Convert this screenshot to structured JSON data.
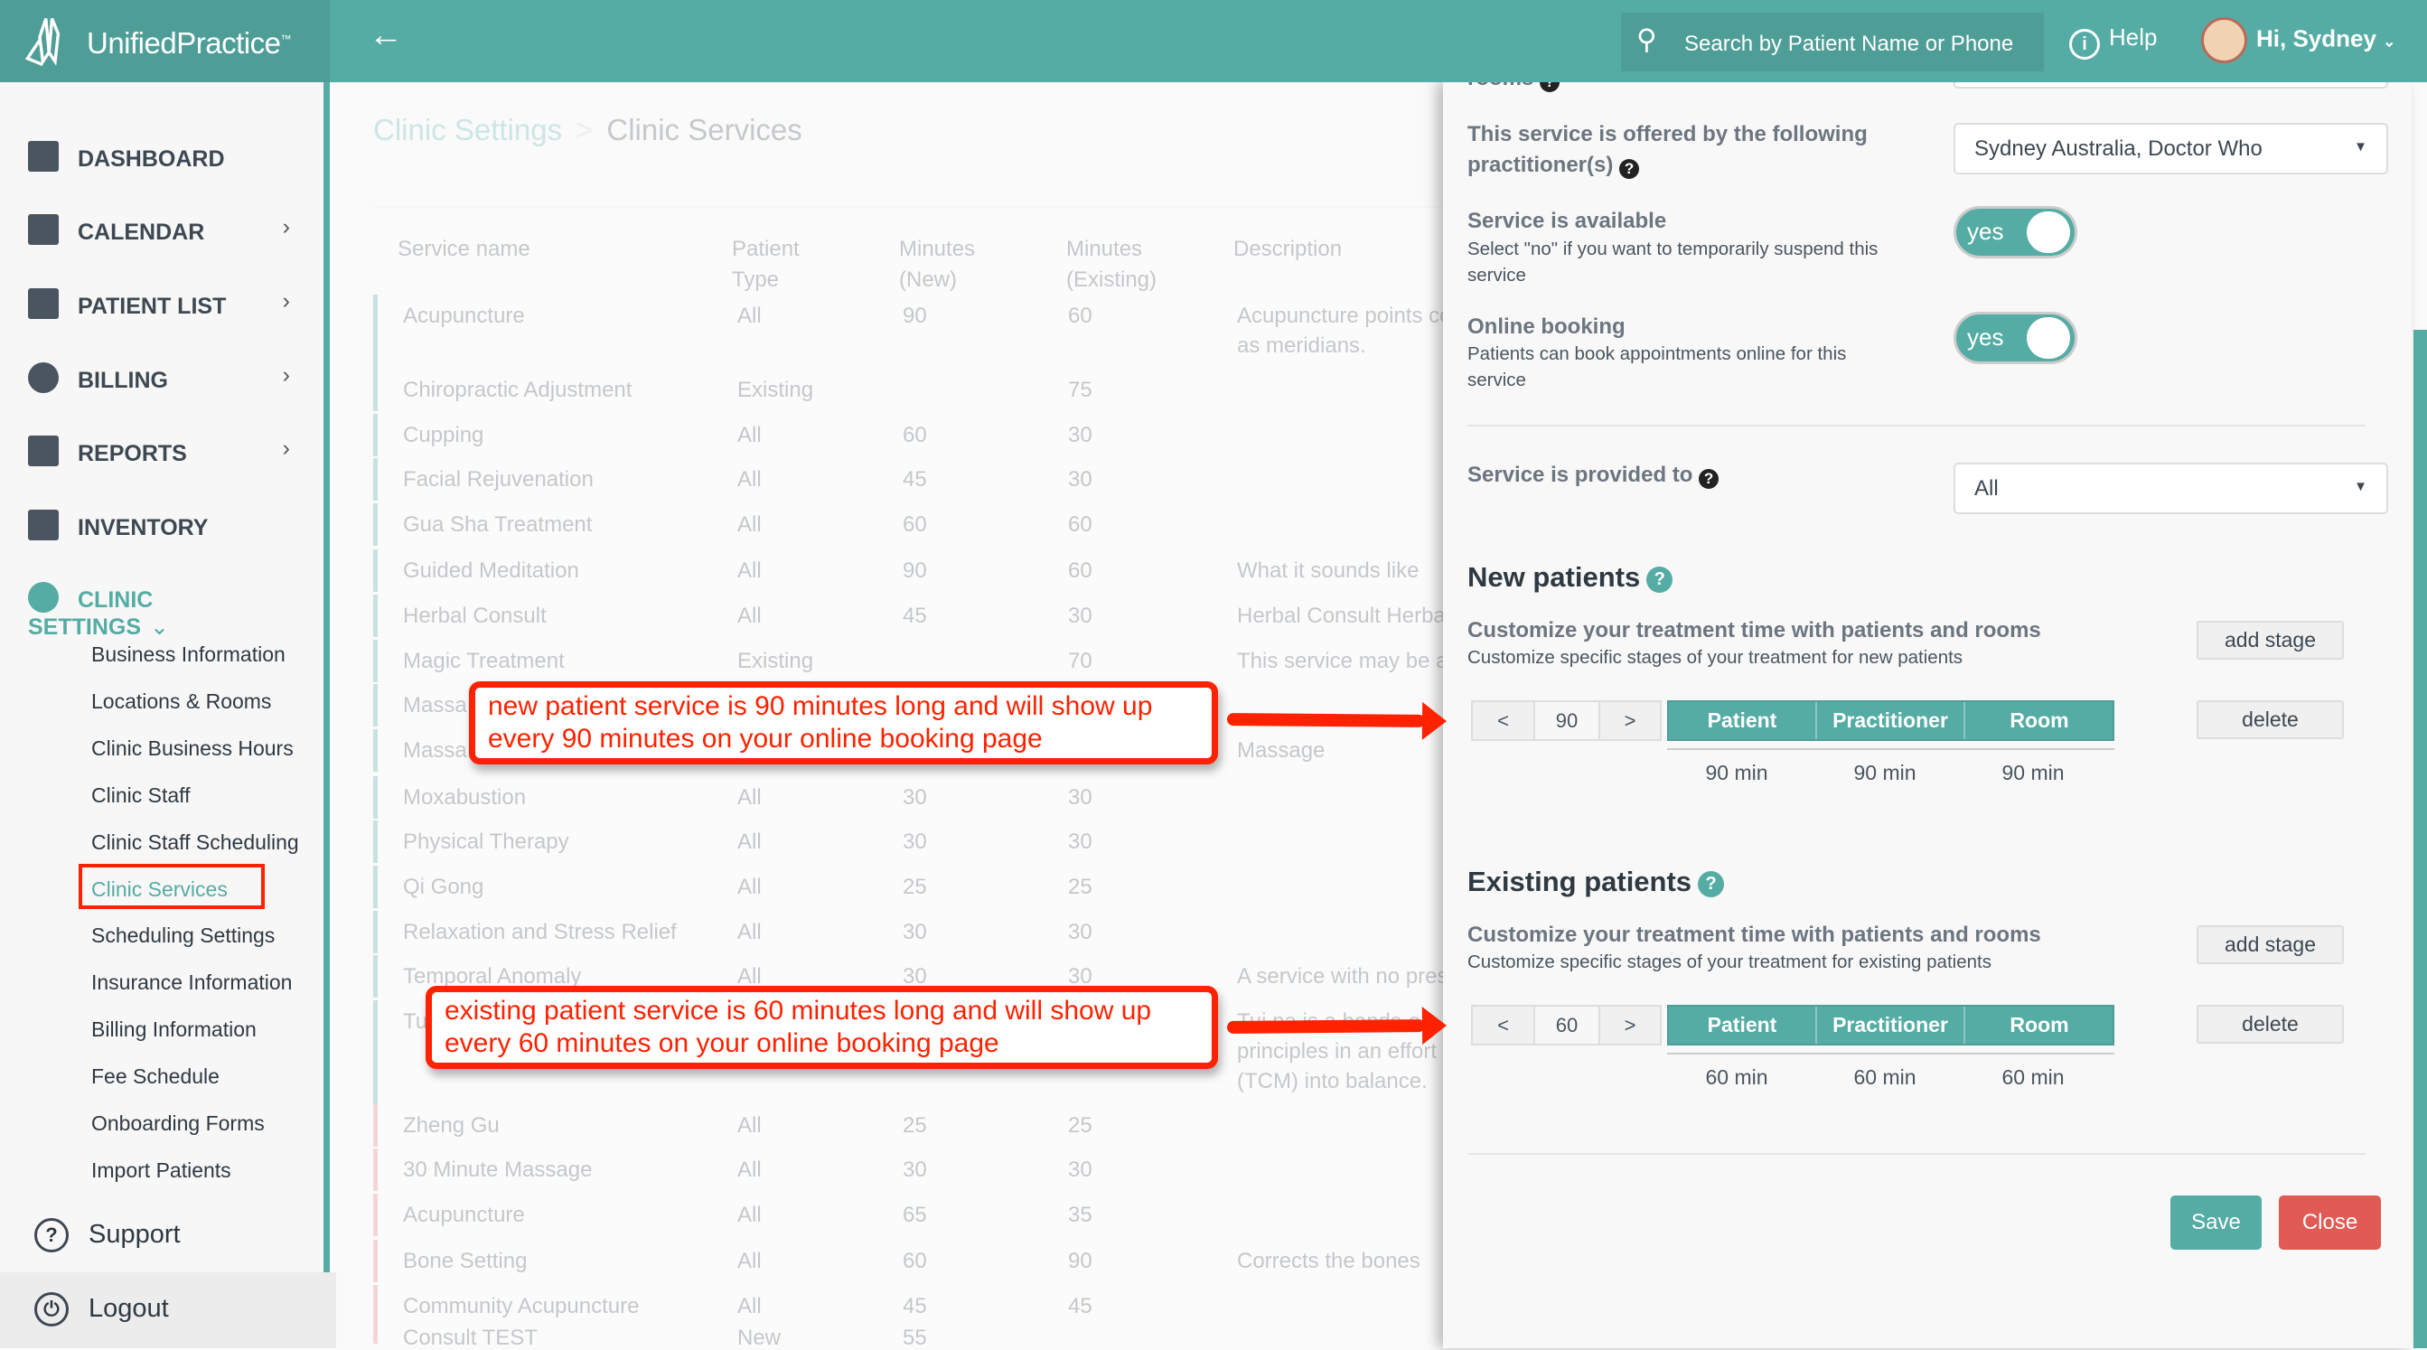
{
  "app": {
    "name_bold": "Unified",
    "name_light": "Practice",
    "trademark": "™"
  },
  "header": {
    "search_placeholder": "Search by Patient Name or Phone",
    "help": "Help",
    "user_greeting": "Hi, Sydney",
    "back_icon": "arrow-left-icon"
  },
  "sidebar": {
    "items": [
      {
        "label": "DASHBOARD",
        "icon": "dashboard-icon",
        "chevron": false
      },
      {
        "label": "CALENDAR",
        "icon": "calendar-icon",
        "chevron": true
      },
      {
        "label": "PATIENT LIST",
        "icon": "user-icon",
        "chevron": true
      },
      {
        "label": "BILLING",
        "icon": "dollar-icon",
        "chevron": true
      },
      {
        "label": "REPORTS",
        "icon": "clipboard-icon",
        "chevron": true
      },
      {
        "label": "INVENTORY",
        "icon": "inventory-icon",
        "chevron": false
      },
      {
        "label": "CLINIC SETTINGS",
        "icon": "gear-icon",
        "chevron": true,
        "active": true
      }
    ],
    "subitems": [
      "Business Information",
      "Locations & Rooms",
      "Clinic Business Hours",
      "Clinic Staff",
      "Clinic Staff Scheduling",
      "Clinic Services",
      "Scheduling Settings",
      "Insurance Information",
      "Billing Information",
      "Fee Schedule",
      "Onboarding Forms",
      "Import Patients"
    ],
    "active_subitem": "Clinic Services",
    "support": "Support",
    "logout": "Logout"
  },
  "breadcrumb": {
    "parent": "Clinic Settings",
    "separator": ">",
    "current": "Clinic Services"
  },
  "table": {
    "headers": [
      "Service name",
      "Patient Type",
      "Minutes (New)",
      "Minutes (Existing)",
      "Description"
    ],
    "rows": [
      {
        "name": "Acupuncture",
        "type": "All",
        "new": "90",
        "existing": "60",
        "desc": "Acupuncture points co\nas meridians.",
        "active": true
      },
      {
        "name": "Chiropractic Adjustment",
        "type": "Existing",
        "new": "",
        "existing": "75",
        "desc": "",
        "active": true
      },
      {
        "name": "Cupping",
        "type": "All",
        "new": "60",
        "existing": "30",
        "desc": "",
        "active": true
      },
      {
        "name": "Facial Rejuvenation",
        "type": "All",
        "new": "45",
        "existing": "30",
        "desc": "",
        "active": true
      },
      {
        "name": "Gua Sha Treatment",
        "type": "All",
        "new": "60",
        "existing": "60",
        "desc": "",
        "active": true
      },
      {
        "name": "Guided Meditation",
        "type": "All",
        "new": "90",
        "existing": "60",
        "desc": "What it sounds like",
        "active": true
      },
      {
        "name": "Herbal Consult",
        "type": "All",
        "new": "45",
        "existing": "30",
        "desc": "Herbal Consult Herbal",
        "active": true
      },
      {
        "name": "Magic Treatment",
        "type": "Existing",
        "new": "",
        "existing": "70",
        "desc": "This service may be a",
        "active": true
      },
      {
        "name": "Massa",
        "type": "",
        "new": "",
        "existing": "",
        "desc": "",
        "active": true
      },
      {
        "name": "Massa",
        "type": "",
        "new": "",
        "existing": "",
        "desc": "Massage",
        "active": true
      },
      {
        "name": "Moxabustion",
        "type": "All",
        "new": "30",
        "existing": "30",
        "desc": "",
        "active": true
      },
      {
        "name": "Physical Therapy",
        "type": "All",
        "new": "30",
        "existing": "30",
        "desc": "",
        "active": true
      },
      {
        "name": "Qi Gong",
        "type": "All",
        "new": "25",
        "existing": "25",
        "desc": "",
        "active": true
      },
      {
        "name": "Relaxation and Stress Relief",
        "type": "All",
        "new": "30",
        "existing": "30",
        "desc": "",
        "active": true
      },
      {
        "name": "Temporal Anomaly",
        "type": "All",
        "new": "30",
        "existing": "30",
        "desc": "A service with no pres",
        "active": true
      },
      {
        "name": "Tu",
        "type": "",
        "new": "",
        "existing": "",
        "desc": "Tui na is a hands-on\nprinciples in an effort\n(TCM) into balance.",
        "active": true
      },
      {
        "name": "Zheng Gu",
        "type": "All",
        "new": "25",
        "existing": "25",
        "desc": "",
        "active": false
      },
      {
        "name": "30 Minute Massage",
        "type": "All",
        "new": "30",
        "existing": "30",
        "desc": "",
        "active": false
      },
      {
        "name": "Acupuncture",
        "type": "All",
        "new": "65",
        "existing": "35",
        "desc": "",
        "active": false
      },
      {
        "name": "Bone Setting",
        "type": "All",
        "new": "60",
        "existing": "90",
        "desc": "Corrects the bones",
        "active": false
      },
      {
        "name": "Community Acupuncture",
        "type": "All",
        "new": "45",
        "existing": "45",
        "desc": "",
        "active": false
      },
      {
        "name": "Consult TEST",
        "type": "New",
        "new": "55",
        "existing": "",
        "desc": "",
        "active": false
      }
    ]
  },
  "panel": {
    "rooms_label_partial": "rooms",
    "practitioners_label": "This service is offered by the following practitioner(s)",
    "practitioners_value": "Sydney Australia, Doctor Who",
    "available_label": "Service is available",
    "available_hint": "Select \"no\" if you want to temporarily suspend this service",
    "available_value": "yes",
    "online_label": "Online booking",
    "online_hint": "Patients can book appointments online for this service",
    "online_value": "yes",
    "provided_label": "Service is provided to",
    "provided_value": "All",
    "new": {
      "title": "New patients",
      "customize": "Customize your treatment time with patients and rooms",
      "hint": "Customize specific stages of your treatment for new patients",
      "add_stage": "add stage",
      "delete": "delete",
      "prev": "<",
      "next": ">",
      "value": "90",
      "stages": [
        "Patient",
        "Practitioner",
        "Room"
      ],
      "minutes": [
        "90 min",
        "90 min",
        "90 min"
      ]
    },
    "existing": {
      "title": "Existing patients",
      "customize": "Customize your treatment time with patients and rooms",
      "hint": "Customize specific stages of your treatment for existing patients",
      "add_stage": "add stage",
      "delete": "delete",
      "prev": "<",
      "next": ">",
      "value": "60",
      "stages": [
        "Patient",
        "Practitioner",
        "Room"
      ],
      "minutes": [
        "60 min",
        "60 min",
        "60 min"
      ]
    },
    "save": "Save",
    "close": "Close"
  },
  "annotations": {
    "new_callout": "new patient service is 90 minutes long and will show up every 90 minutes on your online booking page",
    "existing_callout": "existing patient service is 60 minutes long and will show up every 60 minutes on your online booking page"
  },
  "colors": {
    "brand": "#55aca4",
    "danger": "#e05b54",
    "annotation": "#ff2200"
  }
}
